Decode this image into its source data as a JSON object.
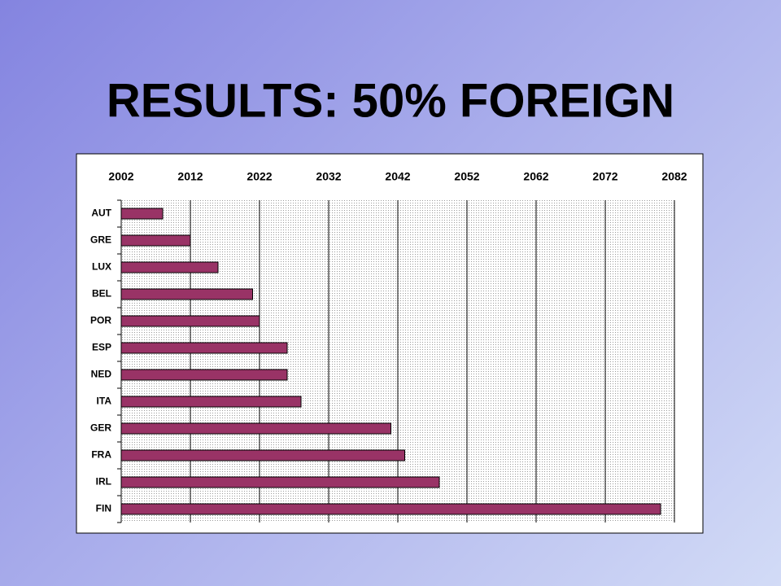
{
  "chart_data": {
    "type": "bar",
    "orientation": "horizontal",
    "title": "RESULTS: 50% FOREIGN",
    "categories": [
      "AUT",
      "GRE",
      "LUX",
      "BEL",
      "POR",
      "ESP",
      "NED",
      "ITA",
      "GER",
      "FRA",
      "IRL",
      "FIN"
    ],
    "values": [
      2008,
      2012,
      2016,
      2021,
      2022,
      2026,
      2026,
      2028,
      2041,
      2043,
      2048,
      2080
    ],
    "color": "#993366",
    "xlim": [
      2002,
      2082
    ],
    "xticks": [
      2002,
      2012,
      2022,
      2032,
      2042,
      2052,
      2062,
      2072,
      2082
    ],
    "grid": true
  }
}
